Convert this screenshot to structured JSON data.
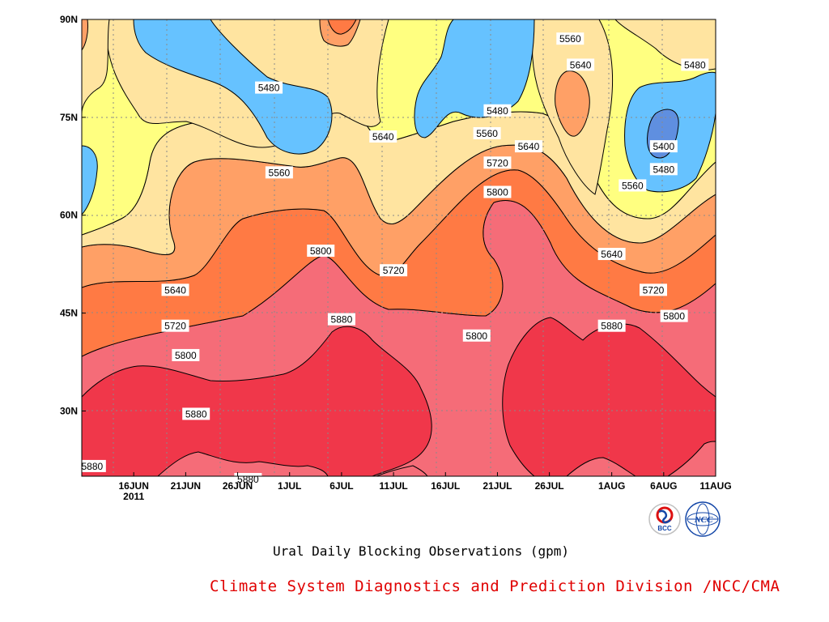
{
  "chart_data": {
    "type": "heatmap",
    "title": "Ural Daily Blocking Observations (gpm)",
    "credit": "Climate System Diagnostics and Prediction Division /NCC/CMA",
    "x_ticks": [
      "16JUN",
      "21JUN",
      "26JUN",
      "1JUL",
      "6JUL",
      "11JUL",
      "16JUL",
      "21JUL",
      "26JUL",
      "1AUG",
      "6AUG",
      "11AUG"
    ],
    "x_year_label": "2011",
    "x_range": [
      "2011-06-11",
      "2011-08-11"
    ],
    "y_ticks": [
      "30N",
      "45N",
      "60N",
      "75N",
      "90N"
    ],
    "y_range": [
      20,
      90
    ],
    "contour_levels": [
      5400,
      5480,
      5560,
      5640,
      5720,
      5800,
      5880
    ],
    "band_colors": {
      "below_5400": "#3a6fd8",
      "5400_5480": "#5f8fe0",
      "5480_5560": "#66c2ff",
      "5560_5640": "#ffff80",
      "5640_5720": "#ffe4a0",
      "5720_5800": "#ffa066",
      "5800_5880": "#ff7a44",
      "5880_5960": "#f56c78",
      "above_5960": "#f0374a"
    },
    "contour_labels": [
      {
        "date": "2011-06-12",
        "lat": 21.5,
        "value": "5880"
      },
      {
        "date": "2011-06-22",
        "lat": 29.5,
        "value": "5880"
      },
      {
        "date": "2011-06-21",
        "lat": 38.5,
        "value": "5800"
      },
      {
        "date": "2011-06-20",
        "lat": 43.0,
        "value": "5720"
      },
      {
        "date": "2011-06-20",
        "lat": 48.5,
        "value": "5640"
      },
      {
        "date": "2011-06-27",
        "lat": 19.5,
        "value": "5880"
      },
      {
        "date": "2011-06-30",
        "lat": 66.5,
        "value": "5560"
      },
      {
        "date": "2011-06-29",
        "lat": 79.5,
        "value": "5480"
      },
      {
        "date": "2011-07-04",
        "lat": 54.5,
        "value": "5800"
      },
      {
        "date": "2011-07-06",
        "lat": 44.0,
        "value": "5880"
      },
      {
        "date": "2011-07-10",
        "lat": 72.0,
        "value": "5640"
      },
      {
        "date": "2011-07-11",
        "lat": 51.5,
        "value": "5720"
      },
      {
        "date": "2011-07-19",
        "lat": 41.5,
        "value": "5800"
      },
      {
        "date": "2011-07-20",
        "lat": 72.5,
        "value": "5560"
      },
      {
        "date": "2011-07-21",
        "lat": 76.0,
        "value": "5480"
      },
      {
        "date": "2011-07-21",
        "lat": 68.0,
        "value": "5720"
      },
      {
        "date": "2011-07-21",
        "lat": 63.5,
        "value": "5800"
      },
      {
        "date": "2011-07-24",
        "lat": 70.5,
        "value": "5640"
      },
      {
        "date": "2011-07-28",
        "lat": 87.0,
        "value": "5560"
      },
      {
        "date": "2011-07-29",
        "lat": 83.0,
        "value": "5640"
      },
      {
        "date": "2011-08-01",
        "lat": 54.0,
        "value": "5640"
      },
      {
        "date": "2011-08-01",
        "lat": 43.0,
        "value": "5880"
      },
      {
        "date": "2011-08-03",
        "lat": 64.5,
        "value": "5560"
      },
      {
        "date": "2011-08-05",
        "lat": 48.5,
        "value": "5720"
      },
      {
        "date": "2011-08-06",
        "lat": 70.5,
        "value": "5400"
      },
      {
        "date": "2011-08-06",
        "lat": 67.0,
        "value": "5480"
      },
      {
        "date": "2011-08-07",
        "lat": 44.5,
        "value": "5800"
      },
      {
        "date": "2011-08-09",
        "lat": 83.0,
        "value": "5480"
      }
    ],
    "grid": true
  },
  "logos": [
    {
      "name": "bcc-logo-icon",
      "text": "BCC"
    },
    {
      "name": "ncc-logo-icon",
      "text": "NCC"
    }
  ]
}
